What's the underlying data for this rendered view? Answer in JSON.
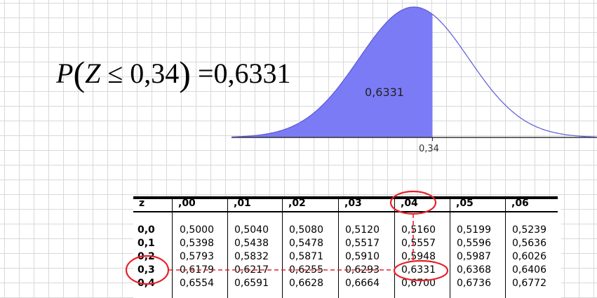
{
  "formula": {
    "p": "P",
    "open": "(",
    "z": "Z",
    "leq": "≤",
    "zval": "0,34",
    "close": ")",
    "eq": "=",
    "result": "0,6331"
  },
  "curve": {
    "area_label": "0,6331",
    "tick_label": "0,34",
    "z_cut": 0.34,
    "shade_color": "#7b7bf5",
    "line_color": "#5a5ad6"
  },
  "table": {
    "headers": [
      "z",
      ",00",
      ",01",
      ",02",
      ",03",
      ",04",
      ",05",
      ",06"
    ],
    "rows": [
      {
        "z": "0,0",
        "values": [
          "0,5000",
          "0,5040",
          "0,5080",
          "0,5120",
          "0,5160",
          "0,5199",
          "0,5239"
        ]
      },
      {
        "z": "0,1",
        "values": [
          "0,5398",
          "0,5438",
          "0,5478",
          "0,5517",
          "0,5557",
          "0,5596",
          "0,5636"
        ]
      },
      {
        "z": "0,2",
        "values": [
          "0,5793",
          "0,5832",
          "0,5871",
          "0,5910",
          "0,5948",
          "0,5987",
          "0,6026"
        ]
      },
      {
        "z": "0,3",
        "values": [
          "0,6179",
          "0,6217",
          "0,6255",
          "0,6293",
          "0,6331",
          "0,6368",
          "0,6406"
        ]
      },
      {
        "z": "0,4",
        "values": [
          "0,6554",
          "0,6591",
          "0,6628",
          "0,6664",
          "0,6700",
          "0,6736",
          "0,6772"
        ]
      }
    ],
    "highlight": {
      "row": "0,3",
      "column": ",04",
      "color": "#e8202a"
    }
  }
}
